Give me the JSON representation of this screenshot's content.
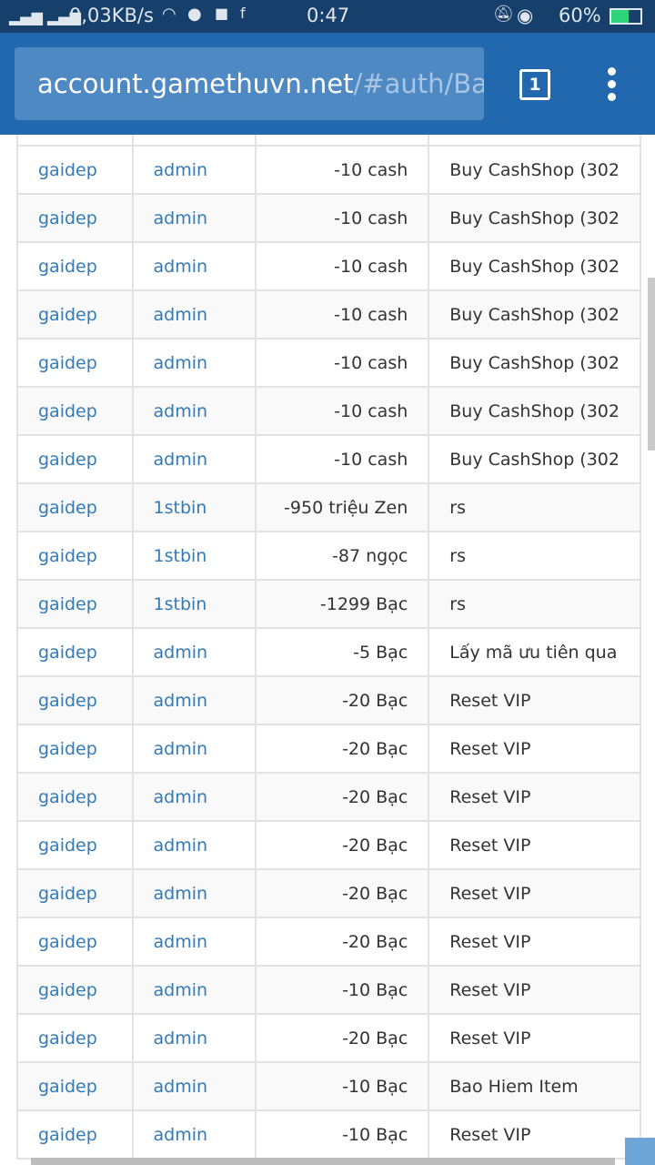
{
  "status_bar": {
    "network_speed": "0,03KB/s",
    "time": "0:47",
    "battery": "60%",
    "icons": [
      "signal-icon",
      "signal-icon",
      "wifi-icon",
      "messenger-icon",
      "message-icon",
      "facebook-icon",
      "mute-icon",
      "eye-icon",
      "battery-charging-icon"
    ],
    "battery_color": "#2ed47a"
  },
  "browser": {
    "url_host": "account.gamethuvn.net",
    "url_path": "/#auth/Ba",
    "tab_count": "1",
    "toolbar_color": "#2268ae"
  },
  "table": {
    "rows": [
      [
        "gaidep",
        "admin",
        "-10  cash",
        "Buy CashShop (302"
      ],
      [
        "gaidep",
        "admin",
        "-10  cash",
        "Buy CashShop (302"
      ],
      [
        "gaidep",
        "admin",
        "-10  cash",
        "Buy CashShop (302"
      ],
      [
        "gaidep",
        "admin",
        "-10  cash",
        "Buy CashShop (302"
      ],
      [
        "gaidep",
        "admin",
        "-10  cash",
        "Buy CashShop (302"
      ],
      [
        "gaidep",
        "admin",
        "-10  cash",
        "Buy CashShop (302"
      ],
      [
        "gaidep",
        "admin",
        "-10  cash",
        "Buy CashShop (302"
      ],
      [
        "gaidep",
        "1stbin",
        "-950  triệu Zen",
        "rs"
      ],
      [
        "gaidep",
        "1stbin",
        "-87  ngọc",
        "rs"
      ],
      [
        "gaidep",
        "1stbin",
        "-1299  Bạc",
        "rs"
      ],
      [
        "gaidep",
        "admin",
        "-5  Bạc",
        "Lấy mã ưu tiên qua"
      ],
      [
        "gaidep",
        "admin",
        "-20  Bạc",
        "Reset VIP"
      ],
      [
        "gaidep",
        "admin",
        "-20  Bạc",
        "Reset VIP"
      ],
      [
        "gaidep",
        "admin",
        "-20  Bạc",
        "Reset VIP"
      ],
      [
        "gaidep",
        "admin",
        "-20  Bạc",
        "Reset VIP"
      ],
      [
        "gaidep",
        "admin",
        "-20  Bạc",
        "Reset VIP"
      ],
      [
        "gaidep",
        "admin",
        "-20  Bạc",
        "Reset VIP"
      ],
      [
        "gaidep",
        "admin",
        "-10  Bạc",
        "Reset VIP"
      ],
      [
        "gaidep",
        "admin",
        "-20  Bạc",
        "Reset VIP"
      ],
      [
        "gaidep",
        "admin",
        "-10  Bạc",
        "Bao Hiem Item"
      ],
      [
        "gaidep",
        "admin",
        "-10  Bạc",
        "Reset VIP"
      ]
    ]
  }
}
